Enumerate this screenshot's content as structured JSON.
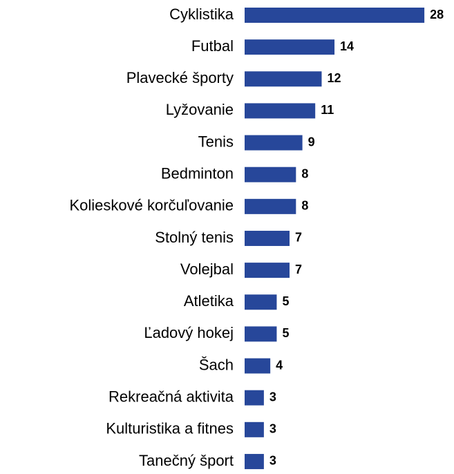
{
  "chart_data": {
    "type": "bar",
    "orientation": "horizontal",
    "categories": [
      "Cyklistika",
      "Futbal",
      "Plavecké športy",
      "Lyžovanie",
      "Tenis",
      "Bedminton",
      "Kolieskové korčuľovanie",
      "Stolný tenis",
      "Volejbal",
      "Atletika",
      "Ľadový hokej",
      "Šach",
      "Rekreačná aktivita",
      "Kulturistika a fitnes",
      "Tanečný šport"
    ],
    "values": [
      28,
      14,
      12,
      11,
      9,
      8,
      8,
      7,
      7,
      5,
      5,
      4,
      3,
      3,
      3
    ],
    "color": "#27479a"
  }
}
